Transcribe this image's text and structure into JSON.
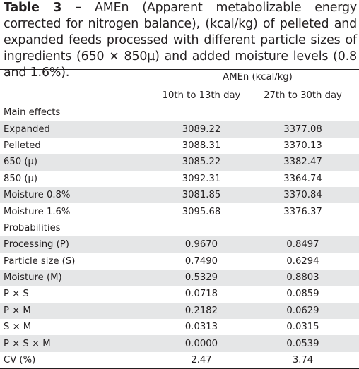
{
  "caption": {
    "label": "Table 3 –",
    "text": " AMEn (Apparent metabolizable energy corrected for nitrogen balance), (kcal/kg) of pelleted and expanded feeds processed with different particle sizes of ingredients (650 × 850µ) and added moisture levels (0.8 and 1.6%)."
  },
  "table": {
    "group_header": "AMEn (kcal/kg)",
    "columns": [
      "10th to 13th day",
      "27th to 30th day"
    ],
    "main_effects_title": "Main effects",
    "main_effects": [
      {
        "label": "Expanded",
        "v1": "3089.22",
        "v2": "3377.08"
      },
      {
        "label": "Pelleted",
        "v1": "3088.31",
        "v2": "3370.13"
      },
      {
        "label": "650 (µ)",
        "v1": "3085.22",
        "v2": "3382.47"
      },
      {
        "label": "850 (µ)",
        "v1": "3092.31",
        "v2": "3364.74"
      },
      {
        "label": "Moisture 0.8%",
        "v1": "3081.85",
        "v2": "3370.84"
      },
      {
        "label": "Moisture 1.6%",
        "v1": "3095.68",
        "v2": "3376.37"
      }
    ],
    "probabilities_title": "Probabilities",
    "probabilities": [
      {
        "label": "Processing (P)",
        "v1": "0.9670",
        "v2": "0.8497"
      },
      {
        "label": "Particle size (S)",
        "v1": "0.7490",
        "v2": "0.6294"
      },
      {
        "label": "Moisture (M)",
        "v1": "0.5329",
        "v2": "0.8803"
      },
      {
        "label": "P × S",
        "v1": "0.0718",
        "v2": "0.0859"
      },
      {
        "label": "P × M",
        "v1": "0.2182",
        "v2": "0.0629"
      },
      {
        "label": "S × M",
        "v1": "0.0313",
        "v2": "0.0315"
      },
      {
        "label": "P × S × M",
        "v1": "0.0000",
        "v2": "0.0539"
      },
      {
        "label": "CV (%)",
        "v1": "2.47",
        "v2": "3.74"
      }
    ]
  },
  "colors": {
    "shade": "#e5e6e7",
    "text": "#231f20"
  }
}
